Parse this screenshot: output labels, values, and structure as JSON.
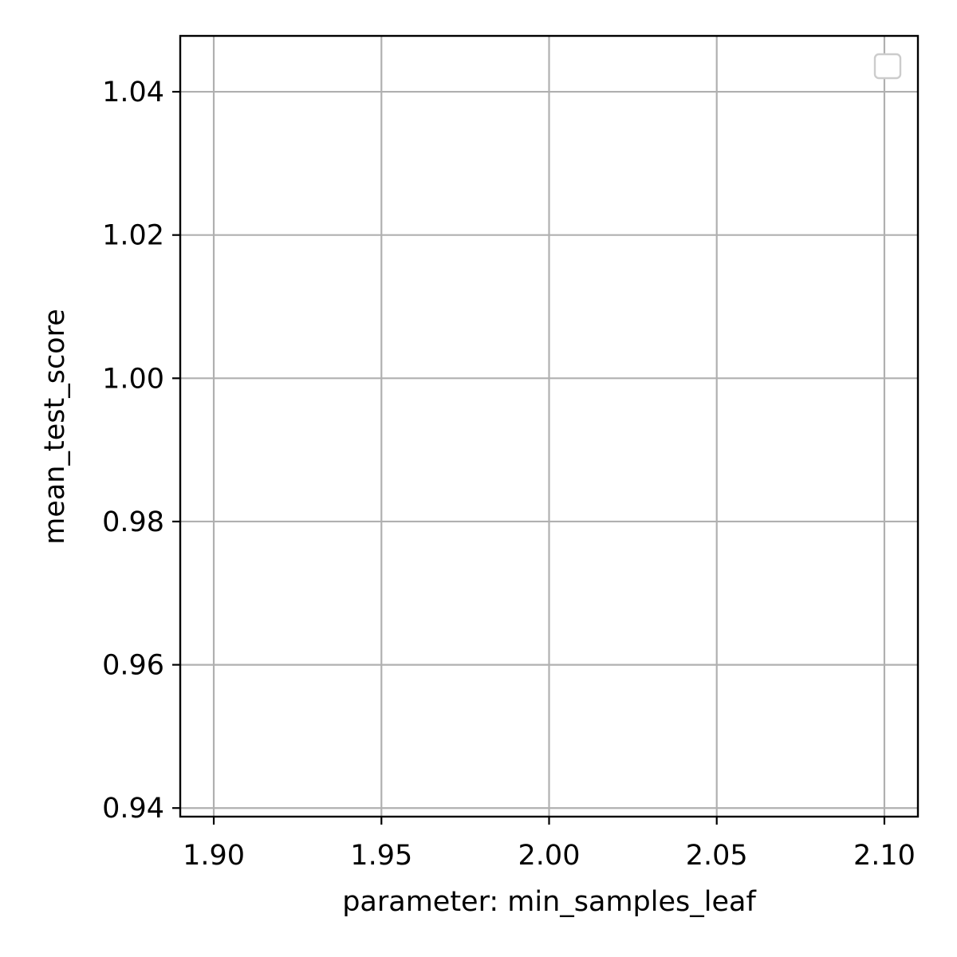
{
  "chart_data": {
    "type": "line",
    "title": "",
    "xlabel": "parameter: min_samples_leaf",
    "ylabel": "mean_test_score",
    "xlim": [
      1.89,
      2.11
    ],
    "ylim": [
      0.9388,
      1.0478
    ],
    "x_ticks": [
      1.9,
      1.95,
      2.0,
      2.05,
      2.1
    ],
    "x_tick_labels": [
      "1.90",
      "1.95",
      "2.00",
      "2.05",
      "2.10"
    ],
    "y_ticks": [
      0.94,
      0.96,
      0.98,
      1.0,
      1.02,
      1.04
    ],
    "y_tick_labels": [
      "0.94",
      "0.96",
      "0.98",
      "1.00",
      "1.02",
      "1.04"
    ],
    "grid": true,
    "legend": {
      "placement": "top-right",
      "entries": []
    },
    "series": [],
    "colors": {
      "grid": "#b0b0b0",
      "frame": "#000000",
      "legend_border": "#cccccc"
    }
  }
}
